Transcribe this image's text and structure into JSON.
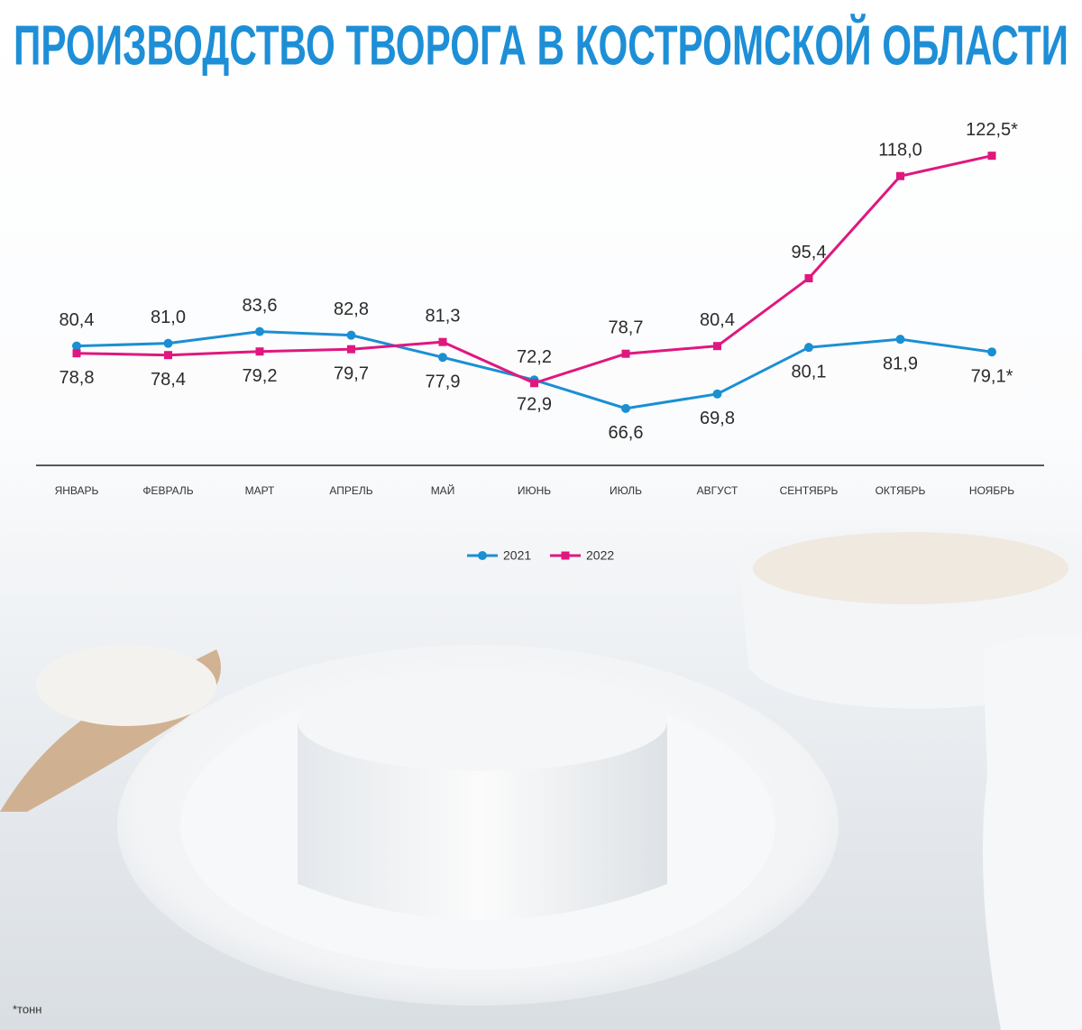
{
  "chart_data": {
    "type": "line",
    "title": "ПРОИЗВОДСТВО ТВОРОГА В КОСТРОМСКОЙ ОБЛАСТИ",
    "categories": [
      "ЯНВАРЬ",
      "ФЕВРАЛЬ",
      "МАРТ",
      "АПРЕЛЬ",
      "МАЙ",
      "ИЮНЬ",
      "ИЮЛЬ",
      "АВГУСТ",
      "СЕНТЯБРЬ",
      "ОКТЯБРЬ",
      "НОЯБРЬ"
    ],
    "series": [
      {
        "name": "2021",
        "color": "#1b8fd2",
        "marker": "circle",
        "values": [
          80.4,
          81.0,
          83.6,
          82.8,
          77.9,
          72.9,
          66.6,
          69.8,
          80.1,
          81.9,
          79.1
        ],
        "value_labels": [
          "80,4",
          "81,0",
          "83,6",
          "82,8",
          "77,9",
          "72,9",
          "66,6",
          "69,8",
          "80,1",
          "81,9",
          "79,1*"
        ]
      },
      {
        "name": "2022",
        "color": "#e0177f",
        "marker": "square",
        "values": [
          78.8,
          78.4,
          79.2,
          79.7,
          81.3,
          72.2,
          78.7,
          80.4,
          95.4,
          118.0,
          122.5
        ],
        "value_labels": [
          "78,8",
          "78,4",
          "79,2",
          "79,7",
          "81,3",
          "72,2",
          "78,7",
          "80,4",
          "95,4",
          "118,0",
          "122,5*"
        ]
      }
    ],
    "ylim": [
      54,
      137
    ],
    "legend": "bottom",
    "footnote": "*тонн"
  }
}
